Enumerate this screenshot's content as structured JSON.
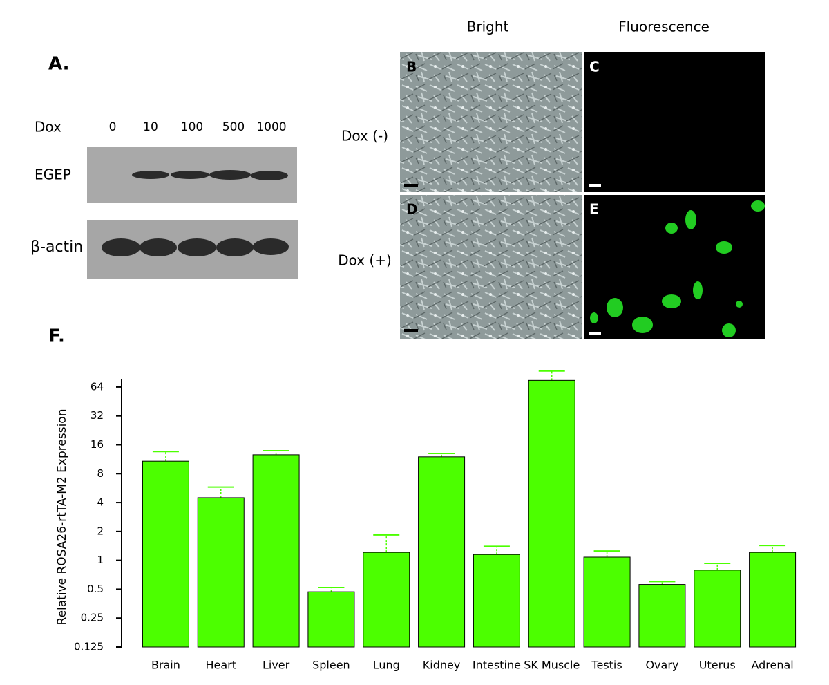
{
  "panels": {
    "a": {
      "label": "A.",
      "row_label": "Dox",
      "doses": [
        "0",
        "10",
        "100",
        "500",
        "1000"
      ],
      "bands": [
        "EGEP",
        "β-actin"
      ]
    },
    "images": {
      "columns": [
        "Bright",
        "Fluorescence"
      ],
      "rows": [
        "Dox (-)",
        "Dox (+)"
      ],
      "letters": [
        "B",
        "C",
        "D",
        "E"
      ]
    },
    "f": {
      "label": "F."
    }
  },
  "chart_data": {
    "type": "bar",
    "ylabel": "Relative ROSA26-rtTA-M2 Expression",
    "categories": [
      "Brain",
      "Heart",
      "Liver",
      "Spleen",
      "Lung",
      "Kidney",
      "Intestine",
      "SK Muscle",
      "Testis",
      "Ovary",
      "Uterus",
      "Adrenal"
    ],
    "values": [
      10.8,
      4.5,
      12.6,
      0.47,
      1.21,
      12.0,
      1.15,
      75,
      1.08,
      0.56,
      0.79,
      1.21
    ],
    "errors": [
      2.8,
      1.3,
      1.3,
      0.05,
      0.63,
      1.0,
      0.25,
      19,
      0.17,
      0.04,
      0.14,
      0.22
    ],
    "color": "#4cff00",
    "error_color": "#4cff00",
    "yscale": "log",
    "log_base": 2,
    "ylim": [
      0.125,
      100
    ],
    "yticks": [
      0.125,
      0.25,
      0.5,
      1,
      2,
      4,
      8,
      16,
      32,
      64
    ]
  }
}
